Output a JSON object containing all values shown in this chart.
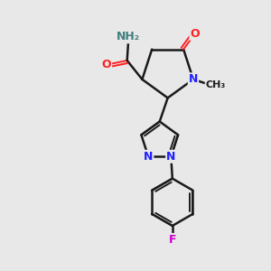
{
  "bg_color": "#e8e8e8",
  "bond_color": "#1a1a1a",
  "N_color": "#2020ff",
  "O_color": "#ff2020",
  "F_color": "#cc00cc",
  "H_color": "#408080",
  "figsize": [
    3.0,
    3.0
  ],
  "dpi": 100,
  "xlim": [
    0,
    10
  ],
  "ylim": [
    0,
    10
  ]
}
